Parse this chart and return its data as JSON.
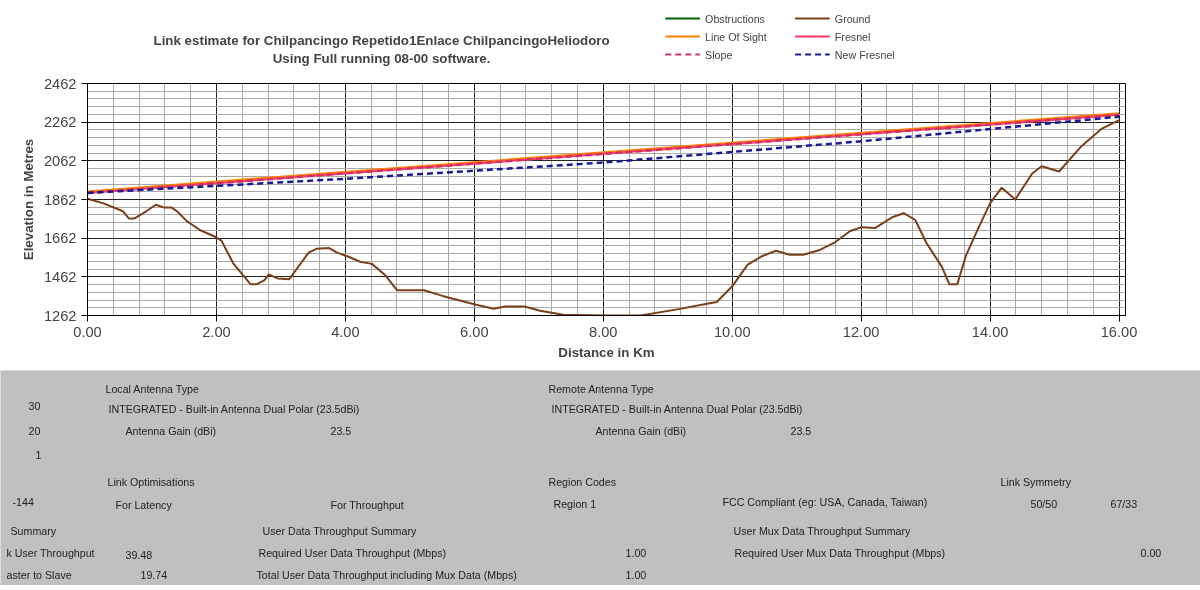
{
  "chart_data": [
    {
      "type": "line",
      "title": "Link estimate for Chilpancingo Repetido1Enlace ChilpancingoHeliodoro",
      "subtitle": "Using Full running 08-00 software.",
      "xlabel": "Distance in Km",
      "ylabel": "Elevation in Metres",
      "xlim": [
        0,
        16.1
      ],
      "ylim": [
        1262,
        2462
      ],
      "xticks": [
        {
          "value": 0,
          "label": "0.00"
        },
        {
          "value": 2,
          "label": "2.00"
        },
        {
          "value": 4,
          "label": "4.00"
        },
        {
          "value": 6,
          "label": "6.00"
        },
        {
          "value": 8,
          "label": "8.00"
        },
        {
          "value": 10,
          "label": "10.00"
        },
        {
          "value": 12,
          "label": "12.00"
        },
        {
          "value": 14,
          "label": "14.00"
        },
        {
          "value": 16,
          "label": "16.00"
        }
      ],
      "yticks": [
        1262,
        1462,
        1662,
        1862,
        2062,
        2262,
        2462
      ],
      "grid": true,
      "legend": "top",
      "marker": "none",
      "series": [
        {
          "name": "Obstructions",
          "color": "#006400"
        },
        {
          "name": "Ground",
          "color": "#7b3f1a",
          "x": [
            0,
            0.25,
            0.55,
            0.64,
            0.73,
            0.91,
            1.06,
            1.18,
            1.3,
            1.39,
            1.54,
            1.75,
            1.99,
            2.08,
            2.26,
            2.53,
            2.62,
            2.74,
            2.81,
            2.95,
            3.13,
            3.25,
            3.43,
            3.55,
            3.75,
            3.87,
            4.05,
            4.23,
            4.41,
            4.62,
            4.8,
            5.22,
            5.52,
            5.82,
            6.06,
            6.3,
            6.48,
            6.78,
            7.02,
            7.38,
            8.02,
            8.58,
            9.17,
            9.59,
            9.76,
            10.0,
            10.24,
            10.47,
            10.68,
            10.89,
            11.1,
            11.36,
            11.6,
            11.83,
            12.01,
            12.22,
            12.48,
            12.66,
            12.84,
            13.01,
            13.25,
            13.37,
            13.49,
            13.63,
            13.81,
            14.0,
            14.18,
            14.39,
            14.65,
            14.8,
            15.07,
            15.4,
            15.72,
            16.0
          ],
          "values": [
            1866,
            1842,
            1801,
            1764,
            1764,
            1801,
            1835,
            1821,
            1821,
            1801,
            1750,
            1703,
            1668,
            1648,
            1532,
            1423,
            1423,
            1444,
            1474,
            1454,
            1450,
            1505,
            1587,
            1607,
            1611,
            1587,
            1566,
            1540,
            1529,
            1470,
            1393,
            1393,
            1362,
            1336,
            1315,
            1297,
            1309,
            1309,
            1287,
            1266,
            1262,
            1262,
            1295,
            1321,
            1332,
            1413,
            1525,
            1570,
            1597,
            1576,
            1576,
            1601,
            1642,
            1699,
            1719,
            1715,
            1770,
            1791,
            1756,
            1638,
            1515,
            1423,
            1423,
            1576,
            1709,
            1842,
            1923,
            1862,
            1995,
            2034,
            2007,
            2132,
            2226,
            2273
          ]
        },
        {
          "name": "Line Of Sight",
          "color": "#ff8000",
          "x": [
            0,
            16
          ],
          "values": [
            1904,
            2308
          ]
        },
        {
          "name": "Fresnel",
          "color": "#ff3366",
          "x": [
            0,
            16
          ],
          "values": [
            1896,
            2300
          ]
        },
        {
          "name": "Slope",
          "color": "#cc3366",
          "line_style": "dashed",
          "x": [
            0,
            16
          ],
          "values": [
            1896,
            2300
          ]
        },
        {
          "name": "New Fresnel",
          "color": "#1a1a99",
          "line_style": "dashed",
          "x": [
            0,
            4,
            8,
            12,
            16
          ],
          "values": [
            1896,
            1969,
            2053,
            2163,
            2290
          ]
        }
      ]
    },
    {
      "type": "other",
      "annotations": [
        "Local Antenna Type",
        "INTEGRATED - Built-in Antenna Dual Polar (23.5dBi)",
        "Antenna Gain (dBi)",
        "23.5",
        "Remote Antenna Type",
        "INTEGRATED - Built-in Antenna Dual Polar (23.5dBi)",
        "Antenna Gain (dBi)",
        "23.5",
        "30",
        "20",
        "1",
        "-144",
        "Link Optimisations",
        "For Latency",
        "For Throughput",
        "Region Codes",
        "Region 1",
        "FCC Compliant (eg: USA, Canada, Taiwan)",
        "Link Symmetry",
        "50/50",
        "67/33",
        "Summary",
        "k User Throughput",
        "39.48",
        "aster to Slave",
        "19.74",
        "User Data Throughput Summary",
        "Required User Data Throughput  (Mbps)",
        "1.00",
        "Total User Data Throughput including Mux Data (Mbps)",
        "1.00",
        "User Mux Data Throughput Summary",
        "Required User Mux Data Throughput  (Mbps)",
        "0.00"
      ]
    }
  ]
}
